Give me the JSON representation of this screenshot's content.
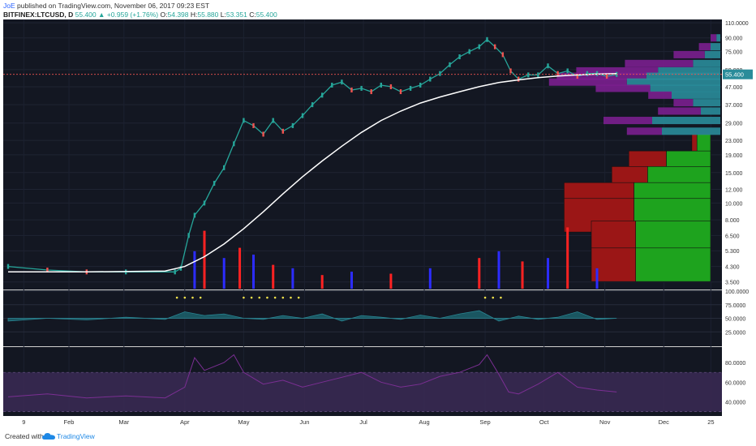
{
  "header": {
    "author": "JoE",
    "published_text": "published on TradingView.com, November 06, 2017 09:23 EST",
    "symbol": "BITFINEX:LTCUSD, D",
    "last": "55.400",
    "change_arrow": "▲",
    "change": "+0.959 (+1.76%)",
    "open_label": "O:",
    "open": "54.398",
    "high_label": "H:",
    "high": "55.880",
    "low_label": "L:",
    "low": "53.351",
    "close_label": "C:",
    "close": "55.400"
  },
  "footer": {
    "created_with": "Created with",
    "brand": "TradingView",
    "logo_icon": "tradingview-cloud-icon"
  },
  "colors": {
    "background": "#131722",
    "up": "#26a69a",
    "down": "#ef5350",
    "ma": "#ffffff",
    "volume_up": "#2c2cff",
    "volume_down": "#ff2222",
    "profile_up": "#1ea31e",
    "profile_down": "#9b1616",
    "vp_teal": "#2a8c9a",
    "vp_purple": "#7b1f8f",
    "price_label_bg": "#2a8c9a",
    "rsi_band": "#3b2a55",
    "rsi_line": "#7b2f93",
    "stoch_marker": "#f2e34b"
  },
  "chart_data": [
    {
      "type": "line",
      "title": "BITFINEX:LTCUSD, D",
      "y_scale": "log",
      "y_ticks": [
        "110.0000",
        "90.000",
        "75.000",
        "59.000",
        "47.000",
        "37.000",
        "29.000",
        "23.000",
        "19.000",
        "15.000",
        "12.000",
        "10.000",
        "8.000",
        "6.500",
        "5.300",
        "4.300",
        "3.500"
      ],
      "y_tick_values": [
        110,
        90,
        75,
        59,
        47,
        37,
        29,
        23,
        19,
        15,
        12,
        10,
        8,
        6.5,
        5.3,
        4.3,
        3.5
      ],
      "ylim": [
        3.2,
        115
      ],
      "last_price_label": "55.400",
      "last_price": 55.4,
      "x_ticks": [
        "9",
        "Feb",
        "Mar",
        "Apr",
        "May",
        "Jun",
        "Jul",
        "Aug",
        "Sep",
        "Oct",
        "Nov",
        "Dec",
        "25"
      ],
      "x_tick_days": [
        8,
        31,
        59,
        90,
        120,
        151,
        181,
        212,
        243,
        273,
        304,
        334,
        358
      ],
      "price_series": {
        "name": "",
        "x_day": [
          0,
          20,
          40,
          60,
          85,
          88,
          92,
          95,
          100,
          105,
          110,
          115,
          120,
          125,
          130,
          135,
          140,
          145,
          150,
          155,
          160,
          165,
          170,
          175,
          180,
          185,
          190,
          195,
          200,
          205,
          210,
          215,
          220,
          225,
          230,
          235,
          240,
          244,
          248,
          252,
          256,
          260,
          265,
          270,
          275,
          280,
          285,
          290,
          295,
          300,
          305,
          310
        ],
        "close": [
          4.3,
          4.1,
          4.0,
          4.0,
          4.0,
          4.2,
          6.5,
          8.5,
          10.0,
          13.0,
          16.0,
          22.0,
          30.0,
          28.0,
          25.0,
          30.0,
          26.0,
          28.0,
          32.0,
          37.0,
          42.0,
          48.0,
          50.0,
          45.0,
          46.0,
          44.0,
          48.0,
          47.0,
          44.0,
          46.0,
          48.0,
          52.0,
          56.0,
          63.0,
          70.0,
          75.0,
          80.0,
          88.0,
          80.0,
          72.0,
          58.0,
          52.0,
          55.0,
          55.0,
          62.0,
          56.0,
          58.0,
          54.0,
          56.0,
          56.0,
          54.0,
          55.4
        ]
      },
      "moving_average": {
        "x_day": [
          0,
          40,
          80,
          90,
          100,
          110,
          120,
          130,
          140,
          150,
          160,
          170,
          180,
          190,
          200,
          210,
          220,
          230,
          240,
          250,
          260,
          270,
          280,
          290,
          300,
          310
        ],
        "value": [
          4.0,
          4.0,
          4.05,
          4.3,
          4.9,
          5.8,
          7.1,
          8.9,
          11.3,
          14.2,
          17.5,
          21.3,
          25.6,
          30.0,
          34.0,
          37.8,
          41.0,
          44.0,
          47.0,
          49.7,
          51.5,
          53.0,
          54.2,
          55.0,
          55.6,
          56.0
        ]
      },
      "volume_profile_upper": {
        "price": [
          90,
          80,
          72,
          64,
          58,
          54,
          50,
          46,
          42,
          38,
          34,
          30,
          26,
          22
        ],
        "teal": [
          0.02,
          0.05,
          0.08,
          0.14,
          0.32,
          0.38,
          0.48,
          0.36,
          0.25,
          0.14,
          0.1,
          0.35,
          0.3,
          0.0
        ],
        "purple": [
          0.03,
          0.06,
          0.16,
          0.35,
          0.42,
          0.46,
          0.4,
          0.28,
          0.12,
          0.1,
          0.22,
          0.25,
          0.18,
          0.0
        ]
      },
      "volume_profile_lower": {
        "price": [
          20,
          16,
          13,
          10.5,
          8.5,
          6.3,
          4.4
        ],
        "up": [
          0.08,
          0.26,
          0.37,
          0.45,
          0.45,
          0.44,
          0.44
        ],
        "down": [
          0.03,
          0.22,
          0.21,
          0.41,
          0.41,
          0.26,
          0.26
        ]
      },
      "volume": {
        "x_day": [
          95,
          100,
          110,
          118,
          125,
          135,
          145,
          160,
          175,
          195,
          215,
          240,
          250,
          262,
          275,
          285,
          300
        ],
        "value": [
          0.55,
          0.85,
          0.45,
          0.6,
          0.5,
          0.35,
          0.3,
          0.2,
          0.25,
          0.22,
          0.3,
          0.45,
          0.55,
          0.4,
          0.45,
          0.9,
          0.3
        ]
      }
    },
    {
      "type": "line",
      "title": "",
      "y_ticks": [
        "100.0000",
        "75.0000",
        "50.0000",
        "25.0000"
      ],
      "y_tick_values": [
        100,
        75,
        50,
        25
      ],
      "ylim": [
        0,
        100
      ],
      "series": [
        {
          "name": "",
          "x_day": [
            0,
            20,
            40,
            60,
            80,
            90,
            100,
            110,
            120,
            130,
            140,
            150,
            160,
            170,
            180,
            190,
            200,
            210,
            220,
            230,
            240,
            250,
            260,
            270,
            280,
            290,
            300,
            310
          ],
          "values": [
            45,
            50,
            47,
            52,
            48,
            62,
            55,
            58,
            50,
            48,
            55,
            50,
            58,
            45,
            55,
            52,
            48,
            56,
            50,
            58,
            64,
            45,
            54,
            48,
            52,
            62,
            48,
            50
          ]
        }
      ],
      "markers_x_day": [
        86,
        90,
        94,
        98,
        120,
        124,
        128,
        132,
        136,
        140,
        144,
        148,
        243,
        247,
        251
      ]
    },
    {
      "type": "line",
      "title": "",
      "y_ticks": [
        "80.0000",
        "60.0000",
        "40.0000"
      ],
      "y_tick_values": [
        80,
        60,
        40
      ],
      "ylim": [
        28,
        95
      ],
      "band": [
        30,
        70
      ],
      "series": [
        {
          "name": "",
          "x_day": [
            0,
            20,
            40,
            60,
            80,
            90,
            95,
            100,
            110,
            115,
            120,
            130,
            140,
            150,
            160,
            170,
            180,
            190,
            200,
            210,
            220,
            230,
            240,
            244,
            250,
            255,
            260,
            270,
            280,
            290,
            300,
            310
          ],
          "values": [
            45,
            48,
            44,
            46,
            44,
            55,
            85,
            72,
            80,
            88,
            70,
            58,
            62,
            55,
            60,
            65,
            70,
            60,
            55,
            58,
            66,
            70,
            78,
            88,
            68,
            50,
            48,
            58,
            70,
            55,
            52,
            50
          ]
        }
      ]
    }
  ]
}
